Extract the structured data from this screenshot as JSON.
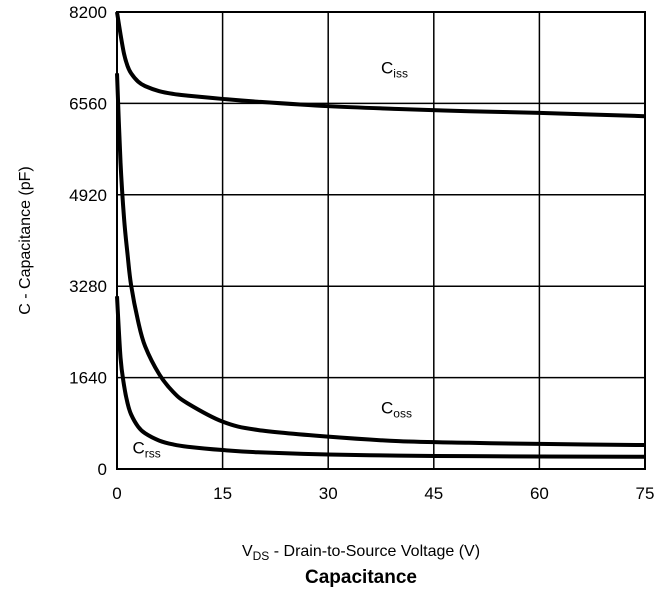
{
  "chart_data": {
    "type": "line",
    "title": "Capacitance",
    "xlabel": {
      "main": "V",
      "sub": "DS",
      "rest": " - Drain-to-Source Voltage (V)"
    },
    "ylabel": "C - Capacitance (pF)",
    "xlim": [
      0,
      75
    ],
    "ylim": [
      0,
      8200
    ],
    "x_ticks": [
      "0",
      "15",
      "30",
      "45",
      "60",
      "75"
    ],
    "y_ticks": [
      "0",
      "1640",
      "3280",
      "4920",
      "6560",
      "8200"
    ],
    "grid": true,
    "series": [
      {
        "name": "C",
        "sub": "iss",
        "points": [
          [
            0,
            8200
          ],
          [
            0.5,
            7800
          ],
          [
            1,
            7450
          ],
          [
            1.5,
            7230
          ],
          [
            2,
            7100
          ],
          [
            3,
            6950
          ],
          [
            4,
            6870
          ],
          [
            6,
            6780
          ],
          [
            8,
            6730
          ],
          [
            10,
            6700
          ],
          [
            15,
            6640
          ],
          [
            20,
            6590
          ],
          [
            30,
            6510
          ],
          [
            40,
            6460
          ],
          [
            50,
            6420
          ],
          [
            60,
            6390
          ],
          [
            75,
            6330
          ]
        ]
      },
      {
        "name": "C",
        "sub": "oss",
        "points": [
          [
            0,
            7100
          ],
          [
            0.5,
            5500
          ],
          [
            1,
            4500
          ],
          [
            1.5,
            3850
          ],
          [
            2,
            3300
          ],
          [
            3,
            2650
          ],
          [
            4,
            2200
          ],
          [
            6,
            1700
          ],
          [
            8,
            1380
          ],
          [
            10,
            1180
          ],
          [
            15,
            850
          ],
          [
            20,
            700
          ],
          [
            30,
            580
          ],
          [
            40,
            500
          ],
          [
            50,
            470
          ],
          [
            60,
            450
          ],
          [
            75,
            430
          ]
        ]
      },
      {
        "name": "C",
        "sub": "rss",
        "points": [
          [
            0,
            3100
          ],
          [
            0.5,
            2000
          ],
          [
            1,
            1500
          ],
          [
            1.5,
            1180
          ],
          [
            2,
            980
          ],
          [
            3,
            760
          ],
          [
            4,
            640
          ],
          [
            6,
            510
          ],
          [
            8,
            440
          ],
          [
            10,
            400
          ],
          [
            15,
            340
          ],
          [
            20,
            300
          ],
          [
            30,
            260
          ],
          [
            40,
            240
          ],
          [
            50,
            230
          ],
          [
            60,
            225
          ],
          [
            75,
            220
          ]
        ]
      }
    ],
    "series_label_positions": [
      {
        "x": 37.5,
        "y": 7100
      },
      {
        "x": 37.5,
        "y": 1000
      },
      {
        "x": 2.2,
        "y": 280
      }
    ]
  }
}
